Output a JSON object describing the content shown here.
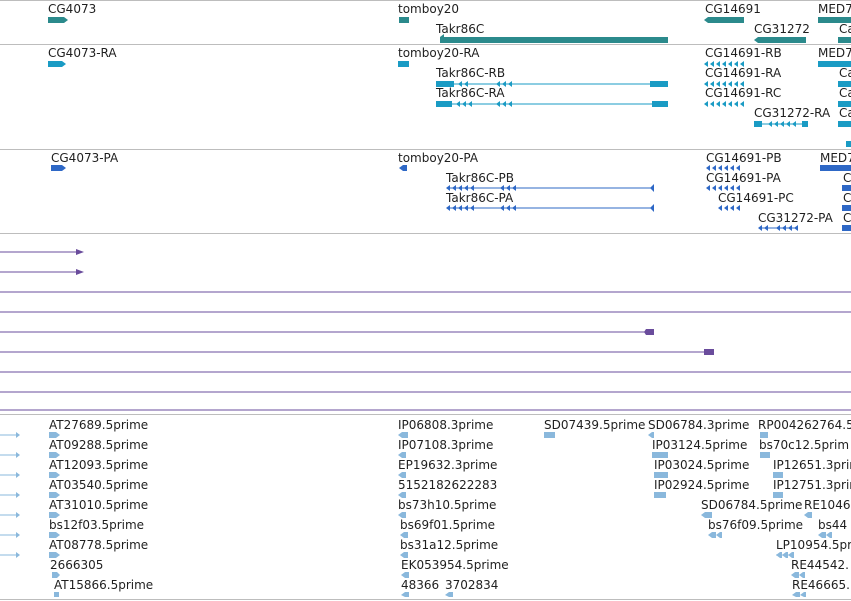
{
  "colors": {
    "gene": "#2b8a8c",
    "mrna": "#1a9bc4",
    "cds": "#2e68c6",
    "assembly": "#6a4c9c",
    "est": "#8ab8dc",
    "separator": "#bdbdbd",
    "text": "#1f1f1f"
  },
  "tracks": {
    "genes": [
      {
        "name": "CG4073"
      },
      {
        "name": "tomboy20"
      },
      {
        "name": "Takr86C"
      },
      {
        "name": "CG14691"
      },
      {
        "name": "CG31272"
      },
      {
        "name": "MED7"
      },
      {
        "name": "Ca"
      }
    ],
    "transcripts": [
      {
        "name": "CG4073-RA"
      },
      {
        "name": "tomboy20-RA"
      },
      {
        "name": "Takr86C-RB"
      },
      {
        "name": "Takr86C-RA"
      },
      {
        "name": "CG14691-RB"
      },
      {
        "name": "CG14691-RA"
      },
      {
        "name": "CG14691-RC"
      },
      {
        "name": "CG31272-RA"
      },
      {
        "name": "MED7"
      },
      {
        "name": "Ca"
      },
      {
        "name": "Ca"
      },
      {
        "name": "Ca"
      }
    ],
    "proteins": [
      {
        "name": "CG4073-PA"
      },
      {
        "name": "tomboy20-PA"
      },
      {
        "name": "Takr86C-PB"
      },
      {
        "name": "Takr86C-PA"
      },
      {
        "name": "CG14691-PB"
      },
      {
        "name": "CG14691-PA"
      },
      {
        "name": "CG14691-PC"
      },
      {
        "name": "CG31272-PA"
      },
      {
        "name": "MED7"
      },
      {
        "name": "C"
      },
      {
        "name": "C"
      },
      {
        "name": "C"
      }
    ],
    "ests": [
      {
        "name": "AT27689.5prime"
      },
      {
        "name": "IP06808.3prime"
      },
      {
        "name": "SD07439.5prime"
      },
      {
        "name": "SD06784.3prime"
      },
      {
        "name": "RP004262764.5"
      },
      {
        "name": "AT09288.5prime"
      },
      {
        "name": "IP07108.3prime"
      },
      {
        "name": "IP03124.5prime"
      },
      {
        "name": "bs70c12.5prim"
      },
      {
        "name": "AT12093.5prime"
      },
      {
        "name": "EP19632.3prime"
      },
      {
        "name": "IP03024.5prime"
      },
      {
        "name": "IP12651.3prim"
      },
      {
        "name": "AT03540.5prime"
      },
      {
        "name": "5152182622283"
      },
      {
        "name": "IP02924.5prime"
      },
      {
        "name": "IP12751.3prim"
      },
      {
        "name": "AT31010.5prime"
      },
      {
        "name": "bs73h10.5prime"
      },
      {
        "name": "SD06784.5prime"
      },
      {
        "name": "RE1046"
      },
      {
        "name": "bs12f03.5prime"
      },
      {
        "name": "bs69f01.5prime"
      },
      {
        "name": "bs76f09.5prime"
      },
      {
        "name": "bs44"
      },
      {
        "name": "AT08778.5prime"
      },
      {
        "name": "bs31a12.5prime"
      },
      {
        "name": "LP10954.5prim"
      },
      {
        "name": "2666305"
      },
      {
        "name": "EK053954.5prime"
      },
      {
        "name": "RE44542."
      },
      {
        "name": "AT15866.5prime"
      },
      {
        "name": "48366"
      },
      {
        "name": "3702834"
      },
      {
        "name": "RE46665."
      }
    ]
  }
}
